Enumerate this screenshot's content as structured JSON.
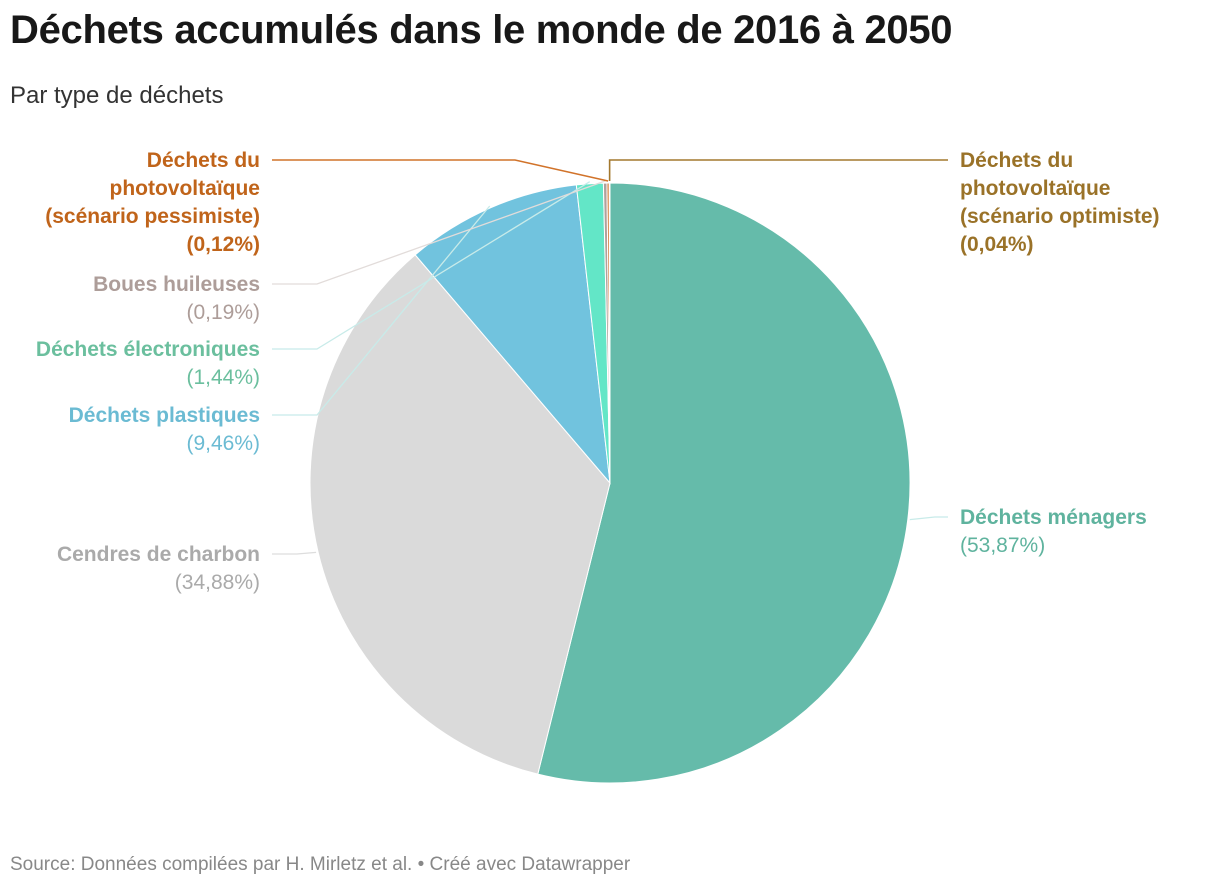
{
  "header": {
    "title": "Déchets accumulés dans le monde de 2016 à 2050",
    "subtitle": "Par type de déchets"
  },
  "footer": {
    "source": "Source: Données compilées par H. Mirletz et al. • Créé avec Datawrapper"
  },
  "chart_data": {
    "type": "pie",
    "title": "Déchets accumulés dans le monde de 2016 à 2050",
    "subtitle": "Par type de déchets",
    "unit": "%",
    "slices": [
      {
        "name": "Déchets ménagers",
        "value": 53.87,
        "value_label": "(53,87%)",
        "color": "#65bbaa",
        "label_color": "#5fb39e",
        "label_lines": [
          "Déchets ménagers"
        ],
        "side": "right"
      },
      {
        "name": "Cendres de charbon",
        "value": 34.88,
        "value_label": "(34,88%)",
        "color": "#dadada",
        "label_color": "#aaaaaa",
        "label_lines": [
          "Cendres de charbon"
        ],
        "side": "left"
      },
      {
        "name": "Déchets plastiques",
        "value": 9.46,
        "value_label": "(9,46%)",
        "color": "#71c3de",
        "label_color": "#6bbbd3",
        "label_lines": [
          "Déchets plastiques"
        ],
        "side": "left"
      },
      {
        "name": "Déchets électroniques",
        "value": 1.44,
        "value_label": "(1,44%)",
        "color": "#63e6c7",
        "label_color": "#6bbf9e",
        "label_lines": [
          "Déchets électroniques"
        ],
        "side": "left"
      },
      {
        "name": "Boues huileuses",
        "value": 0.19,
        "value_label": "(0,19%)",
        "color": "#b0a09c",
        "label_color": "#ad9d99",
        "label_lines": [
          "Boues huileuses"
        ],
        "side": "left"
      },
      {
        "name": "Déchets du photovoltaïque (scénario pessimiste)",
        "value": 0.12,
        "value_label": "(0,12%)",
        "color": "#d1732a",
        "label_color": "#c0641a",
        "label_lines": [
          "Déchets du",
          "photovoltaïque",
          "(scénario pessimiste)"
        ],
        "side": "left",
        "value_bold": true
      },
      {
        "name": "Déchets du photovoltaïque (scénario optimiste)",
        "value": 0.04,
        "value_label": "(0,04%)",
        "color": "#a3782e",
        "label_color": "#9a7228",
        "label_lines": [
          "Déchets du",
          "photovoltaïque",
          "(scénario optimiste)"
        ],
        "side": "right",
        "value_bold": true
      }
    ],
    "start_angle": "12 o'clock",
    "direction": "clockwise",
    "legend": "none (direct labels)"
  }
}
